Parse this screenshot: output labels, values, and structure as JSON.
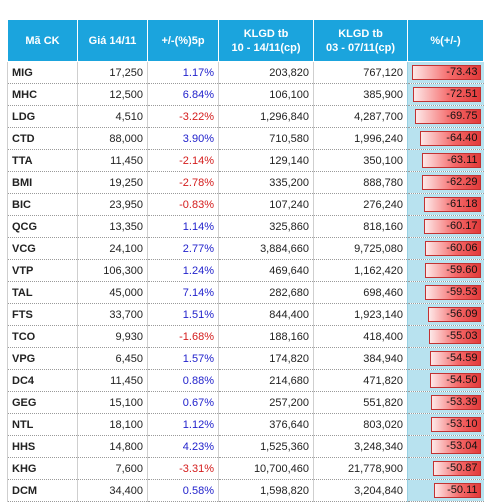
{
  "headers": {
    "code": "Mã CK",
    "price": "Giá 14/11",
    "change5d": "+/-(%)5p",
    "vol1_line1": "KLGD tb",
    "vol1_line2": "10 - 14/11(cp)",
    "vol2_line1": "KLGD tb",
    "vol2_line2": "03 - 07/11(cp)",
    "pct": "%(+/-)"
  },
  "colors": {
    "header_bg": "#1ba4dd",
    "positive": "#2222cc",
    "negative": "#d41c1c",
    "bar": "#e23a3a",
    "pct_column_bg": "#b8e2ef"
  },
  "pct_scale_max": 73.43,
  "rows": [
    {
      "code": "MIG",
      "price": "17,250",
      "change": "1.17%",
      "sign": "pos",
      "vol1": "203,820",
      "vol2": "767,120",
      "pct": "-73.43"
    },
    {
      "code": "MHC",
      "price": "12,500",
      "change": "6.84%",
      "sign": "pos",
      "vol1": "106,100",
      "vol2": "385,900",
      "pct": "-72.51"
    },
    {
      "code": "LDG",
      "price": "4,510",
      "change": "-3.22%",
      "sign": "neg",
      "vol1": "1,296,840",
      "vol2": "4,287,700",
      "pct": "-69.75"
    },
    {
      "code": "CTD",
      "price": "88,000",
      "change": "3.90%",
      "sign": "pos",
      "vol1": "710,580",
      "vol2": "1,996,240",
      "pct": "-64.40"
    },
    {
      "code": "TTA",
      "price": "11,450",
      "change": "-2.14%",
      "sign": "neg",
      "vol1": "129,140",
      "vol2": "350,100",
      "pct": "-63.11"
    },
    {
      "code": "BMI",
      "price": "19,250",
      "change": "-2.78%",
      "sign": "neg",
      "vol1": "335,200",
      "vol2": "888,780",
      "pct": "-62.29"
    },
    {
      "code": "BIC",
      "price": "23,950",
      "change": "-0.83%",
      "sign": "neg",
      "vol1": "107,240",
      "vol2": "276,240",
      "pct": "-61.18"
    },
    {
      "code": "QCG",
      "price": "13,350",
      "change": "1.14%",
      "sign": "pos",
      "vol1": "325,860",
      "vol2": "818,160",
      "pct": "-60.17"
    },
    {
      "code": "VCG",
      "price": "24,100",
      "change": "2.77%",
      "sign": "pos",
      "vol1": "3,884,660",
      "vol2": "9,725,080",
      "pct": "-60.06"
    },
    {
      "code": "VTP",
      "price": "106,300",
      "change": "1.24%",
      "sign": "pos",
      "vol1": "469,640",
      "vol2": "1,162,420",
      "pct": "-59.60"
    },
    {
      "code": "TAL",
      "price": "45,000",
      "change": "7.14%",
      "sign": "pos",
      "vol1": "282,680",
      "vol2": "698,460",
      "pct": "-59.53"
    },
    {
      "code": "FTS",
      "price": "33,700",
      "change": "1.51%",
      "sign": "pos",
      "vol1": "844,400",
      "vol2": "1,923,140",
      "pct": "-56.09"
    },
    {
      "code": "TCO",
      "price": "9,930",
      "change": "-1.68%",
      "sign": "neg",
      "vol1": "188,160",
      "vol2": "418,400",
      "pct": "-55.03"
    },
    {
      "code": "VPG",
      "price": "6,450",
      "change": "1.57%",
      "sign": "pos",
      "vol1": "174,820",
      "vol2": "384,940",
      "pct": "-54.59"
    },
    {
      "code": "DC4",
      "price": "11,450",
      "change": "0.88%",
      "sign": "pos",
      "vol1": "214,680",
      "vol2": "471,820",
      "pct": "-54.50"
    },
    {
      "code": "GEG",
      "price": "15,100",
      "change": "0.67%",
      "sign": "pos",
      "vol1": "257,200",
      "vol2": "551,820",
      "pct": "-53.39"
    },
    {
      "code": "NTL",
      "price": "18,100",
      "change": "1.12%",
      "sign": "pos",
      "vol1": "376,640",
      "vol2": "803,020",
      "pct": "-53.10"
    },
    {
      "code": "HHS",
      "price": "14,800",
      "change": "4.23%",
      "sign": "pos",
      "vol1": "1,525,360",
      "vol2": "3,248,340",
      "pct": "-53.04"
    },
    {
      "code": "KHG",
      "price": "7,600",
      "change": "-3.31%",
      "sign": "neg",
      "vol1": "10,700,460",
      "vol2": "21,778,900",
      "pct": "-50.87"
    },
    {
      "code": "DCM",
      "price": "34,400",
      "change": "0.58%",
      "sign": "pos",
      "vol1": "1,598,820",
      "vol2": "3,204,840",
      "pct": "-50.11"
    }
  ]
}
